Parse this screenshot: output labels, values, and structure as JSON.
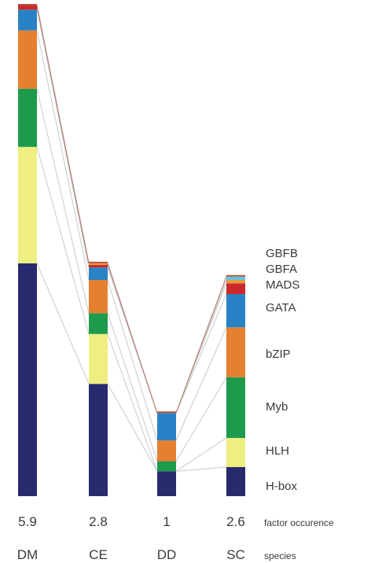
{
  "chart_data": {
    "type": "bar",
    "stacked": true,
    "categories": [
      "DM",
      "CE",
      "DD",
      "SC"
    ],
    "factor_occurence": [
      "5.9",
      "2.8",
      "1",
      "2.6"
    ],
    "row_captions": {
      "values": "factor occurence",
      "categories": "species"
    },
    "series": [
      {
        "name": "H-box",
        "color": "#272b6e",
        "values": [
          2.8,
          1.35,
          0.3,
          0.35
        ]
      },
      {
        "name": "HLH",
        "color": "#eeee82",
        "values": [
          1.4,
          0.6,
          0.0,
          0.35
        ]
      },
      {
        "name": "Myb",
        "color": "#1e9a4d",
        "values": [
          0.7,
          0.25,
          0.12,
          0.73
        ]
      },
      {
        "name": "bZIP",
        "color": "#e58030",
        "values": [
          0.7,
          0.4,
          0.25,
          0.6
        ]
      },
      {
        "name": "GATA",
        "color": "#2a82c6",
        "values": [
          0.25,
          0.15,
          0.33,
          0.4
        ]
      },
      {
        "name": "MADS",
        "color": "#cc2a2a",
        "values": [
          0.05,
          0.03,
          0.0,
          0.13
        ]
      },
      {
        "name": "GBFA",
        "color": "#e89b3a",
        "values": [
          0.0,
          0.02,
          0.0,
          0.04
        ]
      },
      {
        "name": "GBFB",
        "color": "#5fc3e8",
        "values": [
          0.0,
          0.0,
          0.0,
          0.04
        ]
      }
    ],
    "legend_position": "right",
    "ylim": [
      0,
      5.9
    ],
    "connector_color": "#c9c9c9",
    "connector_top_color": "#b0706a"
  }
}
